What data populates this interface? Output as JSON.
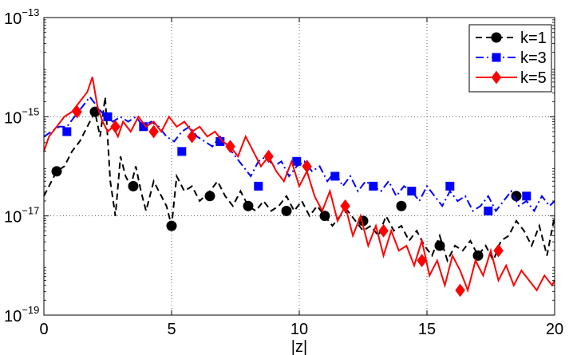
{
  "chart_data": {
    "type": "line",
    "xlabel": "|z|",
    "ylabel": "",
    "title": "",
    "xlim": [
      0,
      20
    ],
    "ylim_log10": [
      -19,
      -13
    ],
    "yscale": "log",
    "grid": true,
    "legend": "top-right",
    "x_ticks": [
      "0",
      "5",
      "10",
      "15",
      "20"
    ],
    "y_ticks": [
      {
        "base": "10",
        "exp": "−13",
        "log10": -13
      },
      {
        "base": "10",
        "exp": "−15",
        "log10": -15
      },
      {
        "base": "10",
        "exp": "−17",
        "log10": -17
      },
      {
        "base": "10",
        "exp": "−19",
        "log10": -19
      }
    ],
    "series": [
      {
        "name": "k=1",
        "color": "#000000",
        "dash": "8,5",
        "marker": "circle",
        "x": [
          0,
          0.2,
          0.5,
          0.8,
          1.1,
          1.4,
          1.7,
          2.0,
          2.2,
          2.4,
          2.6,
          2.8,
          3.0,
          3.2,
          3.4,
          3.6,
          3.8,
          4.0,
          4.3,
          4.6,
          4.8,
          5.0,
          5.2,
          5.5,
          5.8,
          6.1,
          6.5,
          6.8,
          7.1,
          7.4,
          7.7,
          8.0,
          8.3,
          8.6,
          8.9,
          9.2,
          9.5,
          9.8,
          10.1,
          10.4,
          10.7,
          11.0,
          11.3,
          11.6,
          11.9,
          12.2,
          12.5,
          12.8,
          13.1,
          13.4,
          13.7,
          14.0,
          14.3,
          14.6,
          14.9,
          15.2,
          15.5,
          15.8,
          16.1,
          16.4,
          16.7,
          17.0,
          17.3,
          17.6,
          17.9,
          18.2,
          18.5,
          18.8,
          19.1,
          19.4,
          19.7,
          20.0
        ],
        "y_log10": [
          -16.6,
          -16.4,
          -16.1,
          -16.0,
          -15.7,
          -15.5,
          -15.2,
          -14.9,
          -15.4,
          -14.6,
          -16.3,
          -17.0,
          -15.8,
          -16.2,
          -16.4,
          -16.0,
          -16.5,
          -16.9,
          -16.3,
          -16.6,
          -16.8,
          -17.2,
          -16.2,
          -16.5,
          -16.4,
          -16.7,
          -16.5,
          -16.3,
          -16.6,
          -16.8,
          -16.5,
          -16.8,
          -16.9,
          -16.7,
          -16.9,
          -16.8,
          -16.6,
          -16.9,
          -16.7,
          -17.0,
          -16.8,
          -17.0,
          -17.2,
          -17.0,
          -16.9,
          -17.1,
          -17.3,
          -17.2,
          -17.4,
          -17.0,
          -17.3,
          -17.2,
          -17.5,
          -17.3,
          -17.6,
          -17.8,
          -17.4,
          -17.9,
          -17.6,
          -17.7,
          -17.5,
          -17.8,
          -17.6,
          -17.9,
          -17.5,
          -17.4,
          -17.1,
          -17.3,
          -17.6,
          -17.2,
          -17.8,
          -17.0
        ],
        "marker_x": [
          0.5,
          2.0,
          3.5,
          5.0,
          6.5,
          8.0,
          9.5,
          11.0,
          12.5,
          14.0,
          15.5,
          17.0,
          18.5
        ],
        "marker_y_log10": [
          -16.1,
          -14.9,
          -16.4,
          -17.2,
          -16.6,
          -16.8,
          -16.9,
          -17.0,
          -17.1,
          -16.8,
          -17.6,
          -17.8,
          -16.6
        ]
      },
      {
        "name": "k=3",
        "color": "#0000ff",
        "dash": "10,4,2,4",
        "marker": "square",
        "x": [
          0,
          0.3,
          0.6,
          0.9,
          1.2,
          1.5,
          1.8,
          2.1,
          2.4,
          2.7,
          3.0,
          3.3,
          3.6,
          3.9,
          4.2,
          4.5,
          4.8,
          5.1,
          5.4,
          5.7,
          6.0,
          6.3,
          6.6,
          6.9,
          7.2,
          7.5,
          7.8,
          8.1,
          8.4,
          8.7,
          9.0,
          9.3,
          9.6,
          9.9,
          10.2,
          10.5,
          10.8,
          11.1,
          11.4,
          11.7,
          12.0,
          12.3,
          12.6,
          12.9,
          13.2,
          13.5,
          13.8,
          14.1,
          14.4,
          14.7,
          15.0,
          15.3,
          15.6,
          15.9,
          16.2,
          16.5,
          16.8,
          17.1,
          17.4,
          17.7,
          18.0,
          18.3,
          18.6,
          18.9,
          19.2,
          19.5,
          19.8,
          20.0
        ],
        "y_log10": [
          -15.4,
          -15.3,
          -15.2,
          -15.2,
          -15.0,
          -14.8,
          -14.6,
          -14.8,
          -15.0,
          -15.1,
          -15.0,
          -15.1,
          -15.0,
          -15.2,
          -15.1,
          -15.2,
          -15.4,
          -15.5,
          -15.3,
          -15.2,
          -15.4,
          -15.5,
          -15.6,
          -15.4,
          -15.6,
          -15.8,
          -16.0,
          -16.2,
          -15.9,
          -15.8,
          -16.0,
          -15.9,
          -16.2,
          -16.0,
          -15.9,
          -16.1,
          -16.0,
          -16.3,
          -16.1,
          -16.4,
          -16.2,
          -16.5,
          -16.3,
          -16.4,
          -16.5,
          -16.3,
          -16.6,
          -16.4,
          -16.5,
          -16.7,
          -16.4,
          -16.6,
          -16.8,
          -16.5,
          -16.7,
          -16.6,
          -16.9,
          -16.8,
          -16.6,
          -16.9,
          -16.7,
          -16.5,
          -16.8,
          -16.7,
          -16.9,
          -16.6,
          -16.8,
          -16.7
        ],
        "marker_x": [
          0.9,
          2.5,
          3.9,
          5.4,
          6.9,
          8.4,
          9.9,
          11.4,
          12.9,
          14.4,
          15.9,
          17.4,
          18.9
        ],
        "marker_y_log10": [
          -15.3,
          -15.0,
          -15.2,
          -15.7,
          -15.5,
          -16.4,
          -15.9,
          -16.2,
          -16.4,
          -16.5,
          -16.4,
          -16.9,
          -16.6
        ]
      },
      {
        "name": "k=5",
        "color": "#ff0000",
        "dash": "",
        "marker": "diamond",
        "x": [
          0,
          0.2,
          0.5,
          0.8,
          1.1,
          1.4,
          1.7,
          1.9,
          2.1,
          2.3,
          2.5,
          2.7,
          2.9,
          3.1,
          3.4,
          3.7,
          4.0,
          4.3,
          4.6,
          4.9,
          5.2,
          5.5,
          5.8,
          6.1,
          6.4,
          6.7,
          7.0,
          7.3,
          7.6,
          7.9,
          8.2,
          8.5,
          8.8,
          9.1,
          9.4,
          9.7,
          10.0,
          10.3,
          10.6,
          10.9,
          11.2,
          11.5,
          11.8,
          12.1,
          12.4,
          12.7,
          13.0,
          13.3,
          13.6,
          13.9,
          14.2,
          14.5,
          14.8,
          15.1,
          15.4,
          15.7,
          16.0,
          16.3,
          16.6,
          16.9,
          17.2,
          17.5,
          17.8,
          18.1,
          18.4,
          18.7,
          19.0,
          19.3,
          19.6,
          19.9,
          20.0
        ],
        "y_log10": [
          -15.7,
          -15.4,
          -15.2,
          -15.0,
          -14.9,
          -14.7,
          -14.5,
          -14.2,
          -14.8,
          -15.1,
          -15.3,
          -15.2,
          -15.4,
          -15.1,
          -15.3,
          -15.0,
          -15.2,
          -15.1,
          -15.3,
          -15.0,
          -15.2,
          -15.1,
          -15.3,
          -15.2,
          -15.4,
          -15.3,
          -15.5,
          -15.6,
          -15.8,
          -15.4,
          -15.7,
          -16.0,
          -15.8,
          -16.1,
          -16.3,
          -15.9,
          -16.4,
          -16.1,
          -16.6,
          -16.9,
          -16.5,
          -17.1,
          -16.8,
          -17.4,
          -17.0,
          -17.6,
          -17.2,
          -17.8,
          -17.3,
          -17.7,
          -17.6,
          -18.0,
          -17.5,
          -18.2,
          -17.9,
          -18.4,
          -17.8,
          -18.1,
          -18.5,
          -17.9,
          -18.2,
          -17.7,
          -18.3,
          -18.0,
          -18.4,
          -18.1,
          -18.3,
          -18.5,
          -18.2,
          -18.4,
          -18.3
        ],
        "marker_x": [
          1.3,
          2.8,
          4.3,
          5.8,
          7.3,
          8.8,
          10.3,
          11.8,
          13.3,
          14.8,
          16.3,
          17.8
        ],
        "marker_y_log10": [
          -14.9,
          -15.2,
          -15.3,
          -15.4,
          -15.6,
          -15.8,
          -16.0,
          -16.8,
          -17.3,
          -17.9,
          -18.5,
          -17.7
        ]
      }
    ]
  }
}
